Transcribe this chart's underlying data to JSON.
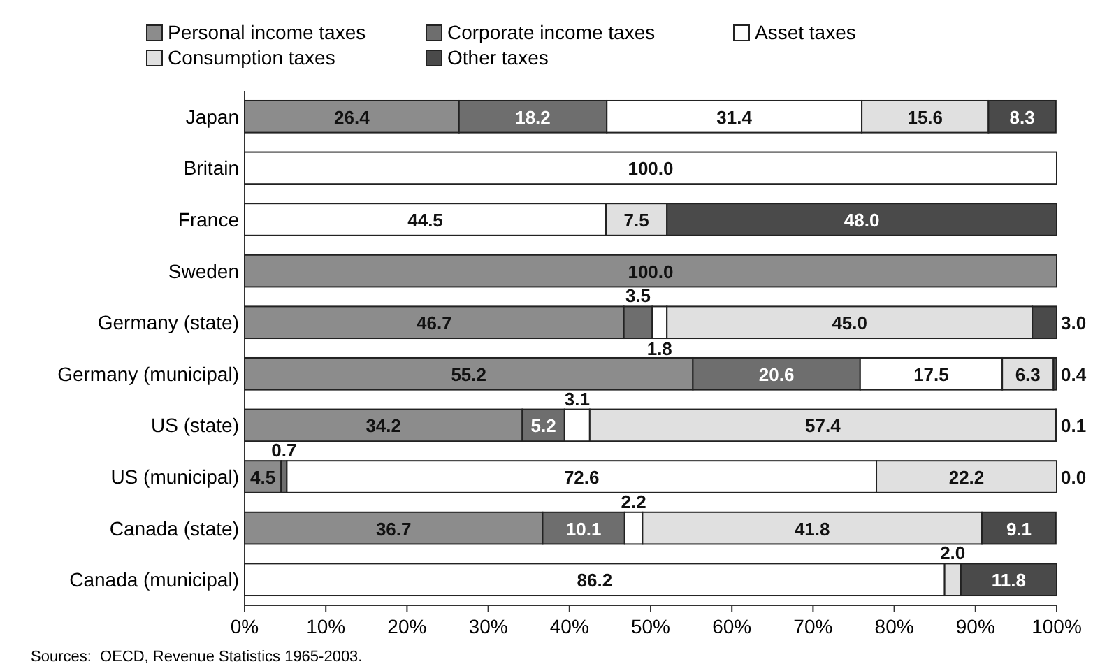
{
  "chart_data": {
    "type": "bar",
    "orientation": "horizontal",
    "stacked": true,
    "legend": "top",
    "xlim": [
      0,
      100
    ],
    "xticks": [
      {
        "value": 0,
        "label": "0%"
      },
      {
        "value": 10,
        "label": "10%"
      },
      {
        "value": 20,
        "label": "20%"
      },
      {
        "value": 30,
        "label": "30%"
      },
      {
        "value": 40,
        "label": "40%"
      },
      {
        "value": 50,
        "label": "50%"
      },
      {
        "value": 60,
        "label": "60%"
      },
      {
        "value": 70,
        "label": "70%"
      },
      {
        "value": 80,
        "label": "80%"
      },
      {
        "value": 90,
        "label": "90%"
      },
      {
        "value": 100,
        "label": "100%"
      }
    ],
    "categories": [
      "Japan",
      "Britain",
      "France",
      "Sweden",
      "Germany (state)",
      "Germany (municipal)",
      "US (state)",
      "US (municipal)",
      "Canada (state)",
      "Canada (municipal)"
    ],
    "series": [
      {
        "name": "Personal income taxes",
        "color": "#8c8c8c",
        "values": [
          26.4,
          null,
          null,
          100.0,
          46.7,
          55.2,
          34.2,
          4.5,
          36.7,
          null
        ],
        "value_labels": [
          "26.4",
          null,
          null,
          "100.0",
          "46.7",
          "55.2",
          "34.2",
          "4.5",
          "36.7",
          null
        ]
      },
      {
        "name": "Corporate income taxes",
        "color": "#6e6e6e",
        "values": [
          18.2,
          null,
          null,
          null,
          3.5,
          20.6,
          5.2,
          0.7,
          10.1,
          null
        ],
        "value_labels": [
          "18.2",
          null,
          null,
          null,
          "3.5",
          "20.6",
          "5.2",
          "0.7",
          "10.1",
          null
        ]
      },
      {
        "name": "Asset taxes",
        "color": "#ffffff",
        "values": [
          31.4,
          100.0,
          44.5,
          null,
          1.8,
          17.5,
          3.1,
          72.6,
          2.2,
          86.2
        ],
        "value_labels": [
          "31.4",
          "100.0",
          "44.5",
          null,
          "1.8",
          "17.5",
          "3.1",
          "72.6",
          "2.2",
          "86.2"
        ]
      },
      {
        "name": "Consumption taxes",
        "color": "#e0e0e0",
        "values": [
          15.6,
          null,
          7.5,
          null,
          45.0,
          6.3,
          57.4,
          22.2,
          41.8,
          2.0
        ],
        "value_labels": [
          "15.6",
          null,
          "7.5",
          null,
          "45.0",
          "6.3",
          "57.4",
          "22.2",
          "41.8",
          "2.0"
        ]
      },
      {
        "name": "Other taxes",
        "color": "#4a4a4a",
        "values": [
          8.3,
          null,
          48.0,
          null,
          3.0,
          0.4,
          0.1,
          0.0,
          9.1,
          11.8
        ],
        "value_labels": [
          "8.3",
          null,
          "48.0",
          null,
          "3.0",
          "0.4",
          "0.1",
          "0.0",
          "9.1",
          "11.8"
        ]
      }
    ],
    "annotations": [
      "Sources:  OECD, Revenue Statistics 1965-2003."
    ]
  }
}
